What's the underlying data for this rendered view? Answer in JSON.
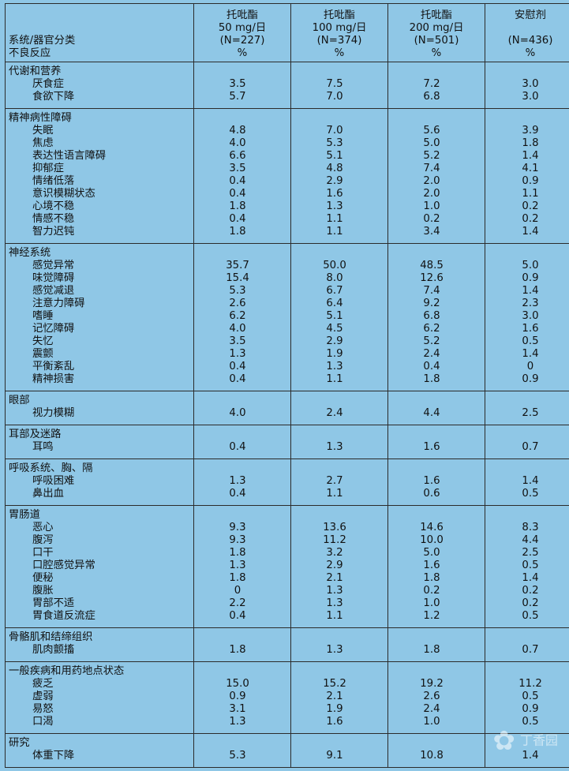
{
  "header": {
    "system_label": "系统/器官分类",
    "ae_label": "不良反应",
    "columns": [
      {
        "drug": "托吡酯",
        "dose": "50 mg/日",
        "n": "(N=227)",
        "unit": "%"
      },
      {
        "drug": "托吡酯",
        "dose": "100 mg/日",
        "n": "(N=374)",
        "unit": "%"
      },
      {
        "drug": "托吡酯",
        "dose": "200 mg/日",
        "n": "(N=501)",
        "unit": "%"
      },
      {
        "drug": "安慰剂",
        "dose": "",
        "n": "(N=436)",
        "unit": "%"
      }
    ]
  },
  "categories": [
    {
      "name": "代谢和营养",
      "rows": [
        {
          "term": "厌食症",
          "v": [
            "3.5",
            "7.5",
            "7.2",
            "3.0"
          ]
        },
        {
          "term": "食欲下降",
          "v": [
            "5.7",
            "7.0",
            "6.8",
            "3.0"
          ]
        }
      ]
    },
    {
      "name": "精神病性障碍",
      "rows": [
        {
          "term": "失眠",
          "v": [
            "4.8",
            "7.0",
            "5.6",
            "3.9"
          ]
        },
        {
          "term": "焦虑",
          "v": [
            "4.0",
            "5.3",
            "5.0",
            "1.8"
          ]
        },
        {
          "term": "表达性语言障碍",
          "v": [
            "6.6",
            "5.1",
            "5.2",
            "1.4"
          ]
        },
        {
          "term": "抑郁症",
          "v": [
            "3.5",
            "4.8",
            "7.4",
            "4.1"
          ]
        },
        {
          "term": "情绪低落",
          "v": [
            "0.4",
            "2.9",
            "2.0",
            "0.9"
          ]
        },
        {
          "term": "意识模糊状态",
          "v": [
            "0.4",
            "1.6",
            "2.0",
            "1.1"
          ]
        },
        {
          "term": "心境不稳",
          "v": [
            "1.8",
            "1.3",
            "1.0",
            "0.2"
          ]
        },
        {
          "term": "情感不稳",
          "v": [
            "0.4",
            "1.1",
            "0.2",
            "0.2"
          ]
        },
        {
          "term": "智力迟钝",
          "v": [
            "1.8",
            "1.1",
            "3.4",
            "1.4"
          ]
        }
      ]
    },
    {
      "name": "神经系统",
      "rows": [
        {
          "term": "感觉异常",
          "v": [
            "35.7",
            "50.0",
            "48.5",
            "5.0"
          ]
        },
        {
          "term": "味觉障碍",
          "v": [
            "15.4",
            "8.0",
            "12.6",
            "0.9"
          ]
        },
        {
          "term": "感觉减退",
          "v": [
            "5.3",
            "6.7",
            "7.4",
            "1.4"
          ]
        },
        {
          "term": "注意力障碍",
          "v": [
            "2.6",
            "6.4",
            "9.2",
            "2.3"
          ]
        },
        {
          "term": "嗜睡",
          "v": [
            "6.2",
            "5.1",
            "6.8",
            "3.0"
          ]
        },
        {
          "term": "记忆障碍",
          "v": [
            "4.0",
            "4.5",
            "6.2",
            "1.6"
          ]
        },
        {
          "term": "失忆",
          "v": [
            "3.5",
            "2.9",
            "5.2",
            "0.5"
          ]
        },
        {
          "term": "震颤",
          "v": [
            "1.3",
            "1.9",
            "2.4",
            "1.4"
          ]
        },
        {
          "term": "平衡紊乱",
          "v": [
            "0.4",
            "1.3",
            "0.4",
            "0"
          ]
        },
        {
          "term": "精神损害",
          "v": [
            "0.4",
            "1.1",
            "1.8",
            "0.9"
          ]
        }
      ]
    },
    {
      "name": "眼部",
      "rows": [
        {
          "term": "视力模糊",
          "v": [
            "4.0",
            "2.4",
            "4.4",
            "2.5"
          ]
        }
      ]
    },
    {
      "name": "耳部及迷路",
      "rows": [
        {
          "term": "耳鸣",
          "v": [
            "0.4",
            "1.3",
            "1.6",
            "0.7"
          ]
        }
      ]
    },
    {
      "name": "呼吸系统、胸、隔",
      "rows": [
        {
          "term": "呼吸困难",
          "v": [
            "1.3",
            "2.7",
            "1.6",
            "1.4"
          ]
        },
        {
          "term": "鼻出血",
          "v": [
            "0.4",
            "1.1",
            "0.6",
            "0.5"
          ]
        }
      ]
    },
    {
      "name": "胃肠道",
      "rows": [
        {
          "term": "恶心",
          "v": [
            "9.3",
            "13.6",
            "14.6",
            "8.3"
          ]
        },
        {
          "term": "腹泻",
          "v": [
            "9.3",
            "11.2",
            "10.0",
            "4.4"
          ]
        },
        {
          "term": "口干",
          "v": [
            "1.8",
            "3.2",
            "5.0",
            "2.5"
          ]
        },
        {
          "term": "口腔感觉异常",
          "v": [
            "1.3",
            "2.9",
            "1.6",
            "0.5"
          ]
        },
        {
          "term": "便秘",
          "v": [
            "1.8",
            "2.1",
            "1.8",
            "1.4"
          ]
        },
        {
          "term": "腹胀",
          "v": [
            "0",
            "1.3",
            "0.2",
            "0.2"
          ]
        },
        {
          "term": "胃部不适",
          "v": [
            "2.2",
            "1.3",
            "1.0",
            "0.2"
          ]
        },
        {
          "term": "胃食道反流症",
          "v": [
            "0.4",
            "1.1",
            "1.2",
            "0.5"
          ]
        }
      ]
    },
    {
      "name": "骨骼肌和结缔组织",
      "rows": [
        {
          "term": "肌肉颤搐",
          "v": [
            "1.8",
            "1.3",
            "1.8",
            "0.7"
          ]
        }
      ]
    },
    {
      "name": "一般疾病和用药地点状态",
      "rows": [
        {
          "term": "疲乏",
          "v": [
            "15.0",
            "15.2",
            "19.2",
            "11.2"
          ]
        },
        {
          "term": "虚弱",
          "v": [
            "0.9",
            "2.1",
            "2.6",
            "0.5"
          ]
        },
        {
          "term": "易怒",
          "v": [
            "3.1",
            "1.9",
            "2.4",
            "0.9"
          ]
        },
        {
          "term": "口渴",
          "v": [
            "1.3",
            "1.6",
            "1.0",
            "0.5"
          ]
        }
      ]
    },
    {
      "name": "研究",
      "rows": [
        {
          "term": "体重下降",
          "v": [
            "5.3",
            "9.1",
            "10.8",
            "1.4"
          ]
        }
      ]
    }
  ],
  "watermark": {
    "text": "丁香园",
    "icon": "flower-icon"
  }
}
